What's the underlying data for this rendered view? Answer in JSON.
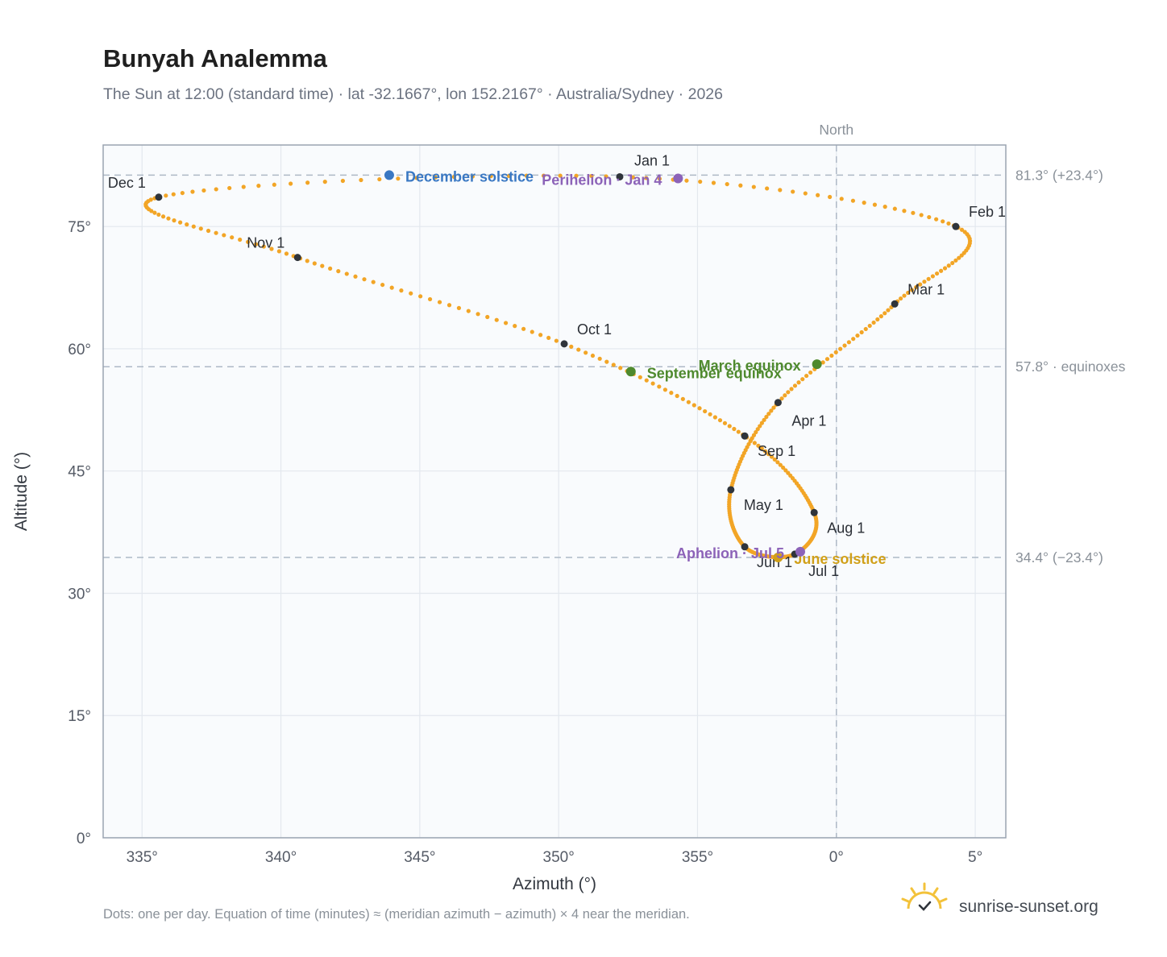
{
  "title": "Bunyah Analemma",
  "subtitle": "The Sun at 12:00 (standard time) · lat -32.1667°, lon 152.2167° · Australia/Sydney · 2026",
  "footer_note": "Dots: one per day. Equation of time (minutes) ≈ (meridian azimuth − azimuth) × 4 near the meridian.",
  "brand": {
    "name": "sunrise-sunset.org",
    "icon": "sunrise-logo-icon"
  },
  "colors": {
    "curve": "#f2a526",
    "month_marker": "#2f343b",
    "december_solstice": "#3a78c3",
    "june_solstice": "#d1a019",
    "equinox": "#4f8a2e",
    "perihelion_aphelion": "#8c63b8",
    "plot_bg": "#f9fbfd",
    "reference_line": "#aeb9c6"
  },
  "chart_data": {
    "type": "scatter",
    "title": "Bunyah Analemma",
    "xlabel": "Azimuth (°)",
    "ylabel": "Altitude (°)",
    "xlim": [
      333.6,
      6.1
    ],
    "ylim": [
      0,
      85
    ],
    "x_ticks": [
      335,
      340,
      345,
      350,
      355,
      0,
      5
    ],
    "x_tick_labels": [
      "335°",
      "340°",
      "345°",
      "350°",
      "355°",
      "0°",
      "5°"
    ],
    "y_ticks": [
      0,
      15,
      30,
      45,
      60,
      75
    ],
    "y_tick_labels": [
      "0°",
      "15°",
      "30°",
      "45°",
      "60°",
      "75°"
    ],
    "grid": true,
    "meridian": {
      "azimuth": 0,
      "label": "North"
    },
    "reference_lines": [
      {
        "altitude": 81.3,
        "label": "81.3° (+23.4°)"
      },
      {
        "altitude": 57.8,
        "label": "57.8° · equinoxes"
      },
      {
        "altitude": 34.4,
        "label": "34.4° (−23.4°)"
      }
    ],
    "months": [
      {
        "label": "Jan 1",
        "az": 352.2,
        "alt": 81.1
      },
      {
        "label": "Feb 1",
        "az": 4.3,
        "alt": 75.0
      },
      {
        "label": "Mar 1",
        "az": 2.1,
        "alt": 65.5
      },
      {
        "label": "Apr 1",
        "az": 357.9,
        "alt": 53.4
      },
      {
        "label": "May 1",
        "az": 356.2,
        "alt": 42.7
      },
      {
        "label": "Jun 1",
        "az": 356.7,
        "alt": 35.7
      },
      {
        "label": "Jul 1",
        "az": 358.5,
        "alt": 34.8
      },
      {
        "label": "Aug 1",
        "az": 359.2,
        "alt": 39.9
      },
      {
        "label": "Sep 1",
        "az": 356.7,
        "alt": 49.3
      },
      {
        "label": "Oct 1",
        "az": 350.2,
        "alt": 60.6
      },
      {
        "label": "Nov 1",
        "az": 340.6,
        "alt": 71.2
      },
      {
        "label": "Dec 1",
        "az": 335.6,
        "alt": 78.6
      }
    ],
    "events": [
      {
        "label": "December solstice",
        "az": 343.9,
        "alt": 81.3,
        "color": "#3a78c3"
      },
      {
        "label": "Perihelion · Jan 4",
        "az": 354.3,
        "alt": 80.9,
        "color": "#8c63b8"
      },
      {
        "label": "March equinox",
        "az": 359.3,
        "alt": 58.1,
        "color": "#4f8a2e"
      },
      {
        "label": "September equinox",
        "az": 352.6,
        "alt": 57.2,
        "color": "#4f8a2e"
      },
      {
        "label": "June solstice",
        "az": 357.9,
        "alt": 34.4,
        "color": "#d1a019"
      },
      {
        "label": "Aphelion · Jul 5",
        "az": 358.7,
        "alt": 35.1,
        "color": "#8c63b8"
      }
    ],
    "daily_points_note": "one per day"
  }
}
